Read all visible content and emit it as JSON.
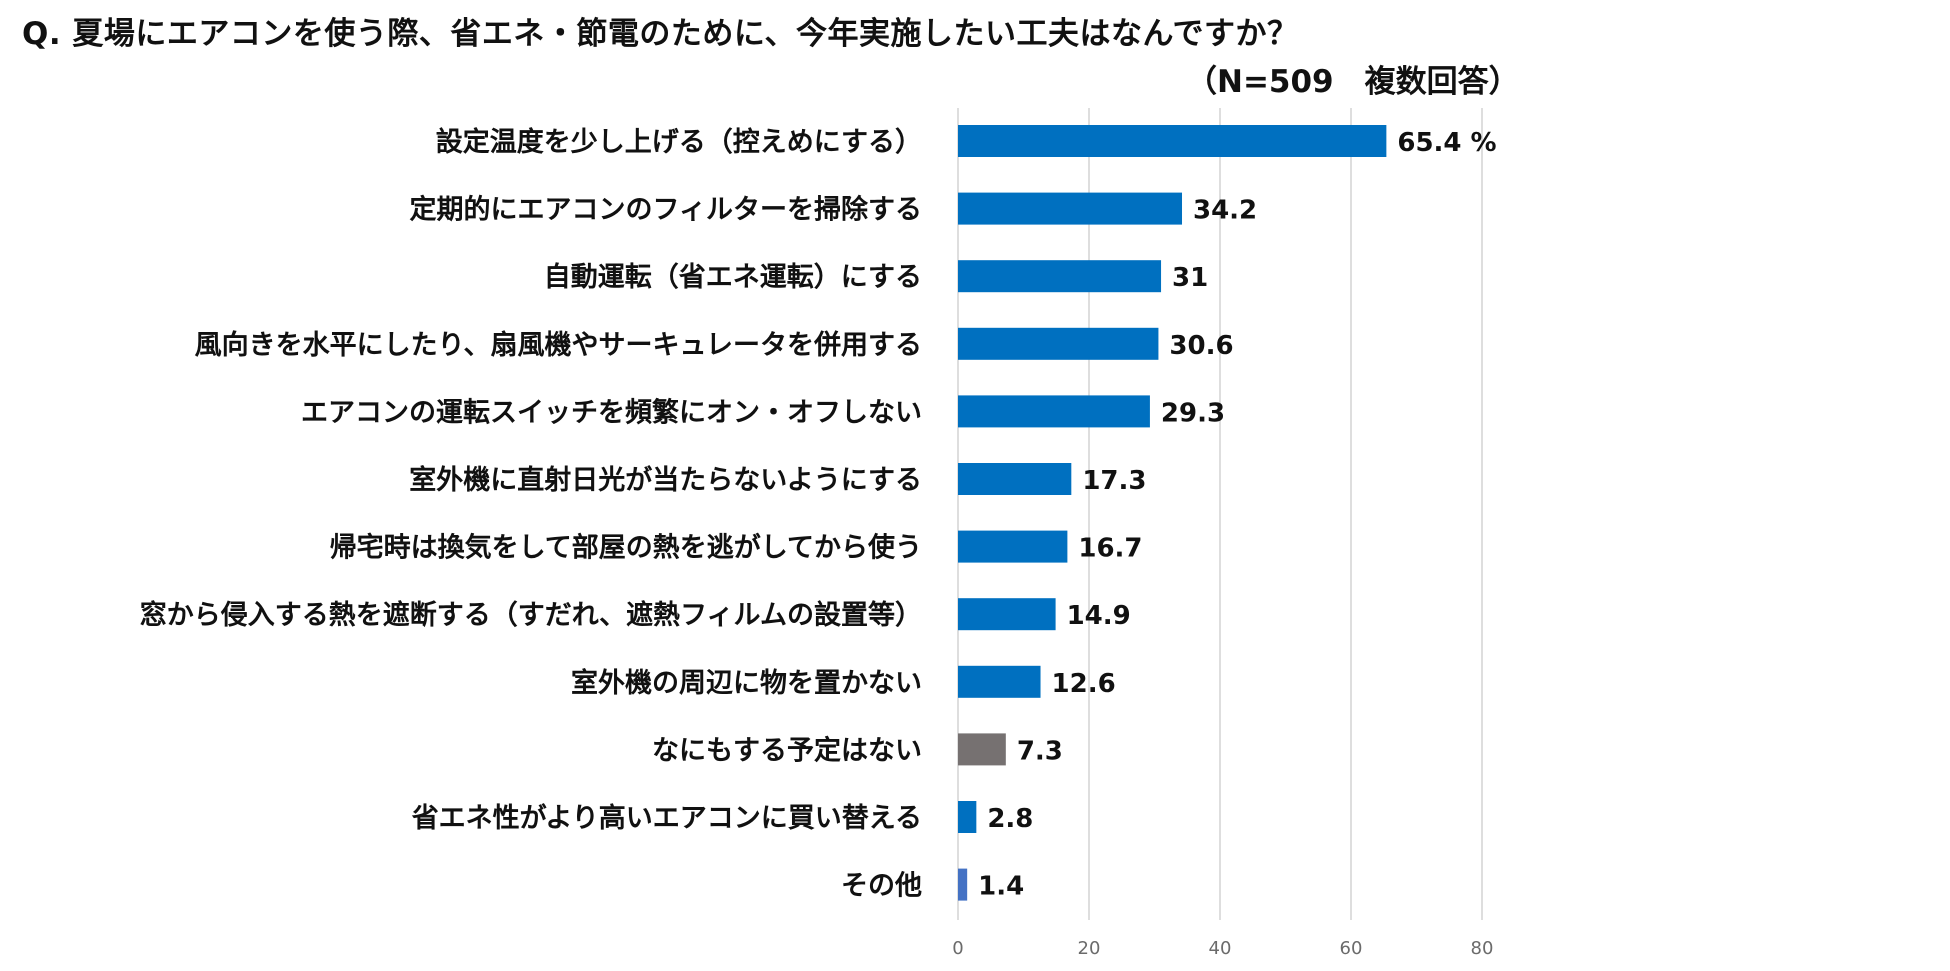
{
  "chart_data": {
    "type": "bar",
    "orientation": "horizontal",
    "title": "Q.  夏場にエアコンを使う際、省エネ・節電のために、今年実施したい工夫はなんですか？",
    "subtitle": "（N=509　複数回答）",
    "categories": [
      "設定温度を少し上げる（控えめにする）",
      "定期的にエアコンのフィルターを掃除する",
      "自動運転（省エネ運転）にする",
      "風向きを水平にしたり、扇風機やサーキュレータを併用する",
      "エアコンの運転スイッチを頻繁にオン・オフしない",
      "室外機に直射日光が当たらないようにする",
      "帰宅時は換気をして部屋の熱を逃がしてから使う",
      "窓から侵入する熱を遮断する（すだれ、遮熱フィルムの設置等）",
      "室外機の周辺に物を置かない",
      "なにもする予定はない",
      "省エネ性がより高いエアコンに買い替える",
      "その他"
    ],
    "values": [
      65.4,
      34.2,
      31,
      30.6,
      29.3,
      17.3,
      16.7,
      14.9,
      12.6,
      7.3,
      2.8,
      1.4
    ],
    "value_labels": [
      "65.4 %",
      "34.2",
      "31",
      "30.6",
      "29.3",
      "17.3",
      "16.7",
      "14.9",
      "12.6",
      "7.3",
      "2.8",
      "1.4"
    ],
    "bar_colors": [
      "#0070C0",
      "#0070C0",
      "#0070C0",
      "#0070C0",
      "#0070C0",
      "#0070C0",
      "#0070C0",
      "#0070C0",
      "#0070C0",
      "#767171",
      "#0070C0",
      "#4472C4"
    ],
    "xlim": [
      0,
      80
    ],
    "xticks": [
      0,
      20,
      40,
      60,
      80
    ],
    "xlabel": "",
    "ylabel": "",
    "grid": true,
    "legend": "none"
  }
}
